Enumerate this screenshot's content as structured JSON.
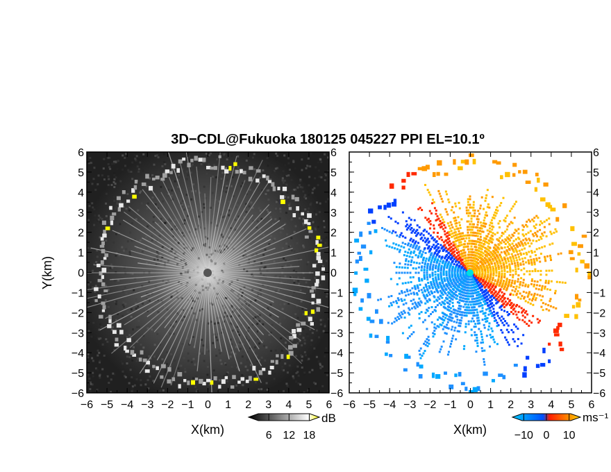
{
  "chart_data": {
    "title": "3D−CDL@Fukuoka 180125 045227 PPI EL=10.1º",
    "panels": [
      {
        "type": "heatmap",
        "field": "reflectivity",
        "xlabel": "X(km)",
        "ylabel": "Y(km)",
        "xlim": [
          -6,
          6
        ],
        "ylim": [
          -6,
          6
        ],
        "xticks": [
          "−6",
          "−5",
          "−4",
          "−3",
          "−2",
          "−1",
          "0",
          "1",
          "2",
          "3",
          "4",
          "5",
          "6"
        ],
        "yticks": [
          "6",
          "5",
          "4",
          "3",
          "2",
          "1",
          "0",
          "−1",
          "−2",
          "−3",
          "−4",
          "−5",
          "−6"
        ],
        "colorbar": {
          "unit": "dB",
          "ticks": [
            "6",
            "12",
            "18"
          ],
          "range": [
            0,
            21
          ],
          "colors": [
            "#000000",
            "#ffffff",
            "#ffff00"
          ]
        }
      },
      {
        "type": "heatmap",
        "field": "doppler_velocity",
        "xlabel": "X(km)",
        "ylabel": "",
        "xlim": [
          -6,
          6
        ],
        "ylim": [
          -6,
          6
        ],
        "xticks": [
          "−6",
          "−5",
          "−4",
          "−3",
          "−2",
          "−1",
          "0",
          "1",
          "2",
          "3",
          "4",
          "5",
          "6"
        ],
        "yticks": [
          "6",
          "5",
          "4",
          "3",
          "2",
          "1",
          "0",
          "−1",
          "−2",
          "−3",
          "−4",
          "−5",
          "−6"
        ],
        "colorbar": {
          "unit": "ms⁻¹",
          "ticks": [
            "−10",
            "0",
            "10"
          ],
          "range": [
            -15,
            15
          ],
          "colors": [
            "#00c8ff",
            "#0050ff",
            "#ff2000",
            "#ffd000"
          ]
        }
      }
    ]
  }
}
